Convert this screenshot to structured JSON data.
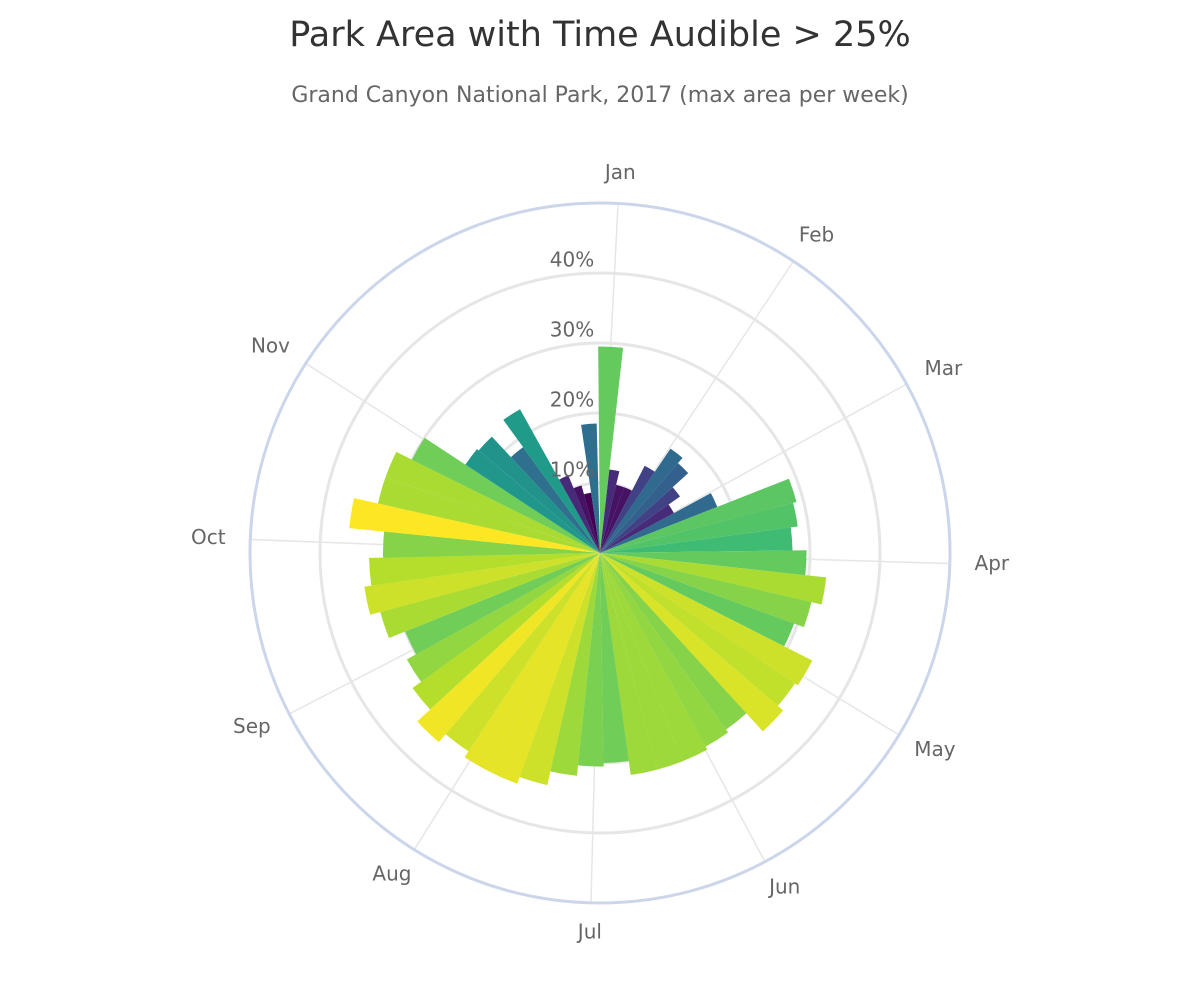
{
  "chart_data": {
    "type": "polar-bar",
    "title": "Park Area with Time Audible > 25%",
    "subtitle": "Grand Canyon National Park, 2017 (max area per week)",
    "x": [
      3,
      10,
      17,
      24,
      31,
      38,
      45,
      52,
      59,
      66,
      73,
      80,
      87,
      94,
      101,
      108,
      115,
      122,
      129,
      136,
      143,
      150,
      157,
      164,
      171,
      178,
      185,
      192,
      199,
      206,
      213,
      220,
      227,
      234,
      241,
      248,
      255,
      262,
      269,
      276,
      283,
      290,
      297,
      304,
      311,
      318,
      325,
      332,
      339,
      346,
      353,
      360
    ],
    "values": [
      29.5,
      12,
      10,
      10,
      14,
      18,
      17,
      14,
      12,
      18,
      29,
      28.5,
      27.5,
      29.5,
      32.5,
      31,
      29.5,
      34,
      33.5,
      34.5,
      31,
      31.5,
      32,
      32,
      32,
      30,
      30.5,
      32,
      34,
      35,
      35,
      34,
      35.5,
      33,
      31.5,
      30,
      32.5,
      34,
      33,
      31,
      36,
      32.5,
      32.5,
      30,
      23,
      22.7,
      18.7,
      23.5,
      12,
      10,
      8.7,
      18.5
    ],
    "xlim": [
      0,
      365
    ],
    "xticks": [
      {
        "value": 3,
        "label": "Jan"
      },
      {
        "value": 34,
        "label": "Feb"
      },
      {
        "value": 62,
        "label": "Mar"
      },
      {
        "value": 93,
        "label": "Apr"
      },
      {
        "value": 123,
        "label": "May"
      },
      {
        "value": 154,
        "label": "Jun"
      },
      {
        "value": 184,
        "label": "Jul"
      },
      {
        "value": 215,
        "label": "Aug"
      },
      {
        "value": 246,
        "label": "Sep"
      },
      {
        "value": 276,
        "label": "Oct"
      },
      {
        "value": 307,
        "label": "Nov"
      }
    ],
    "ylim": [
      0,
      50
    ],
    "yticks": [
      {
        "value": 10,
        "label": "10%"
      },
      {
        "value": 20,
        "label": "20%"
      },
      {
        "value": 30,
        "label": "30%"
      },
      {
        "value": 40,
        "label": "40%"
      }
    ],
    "grid": true
  }
}
